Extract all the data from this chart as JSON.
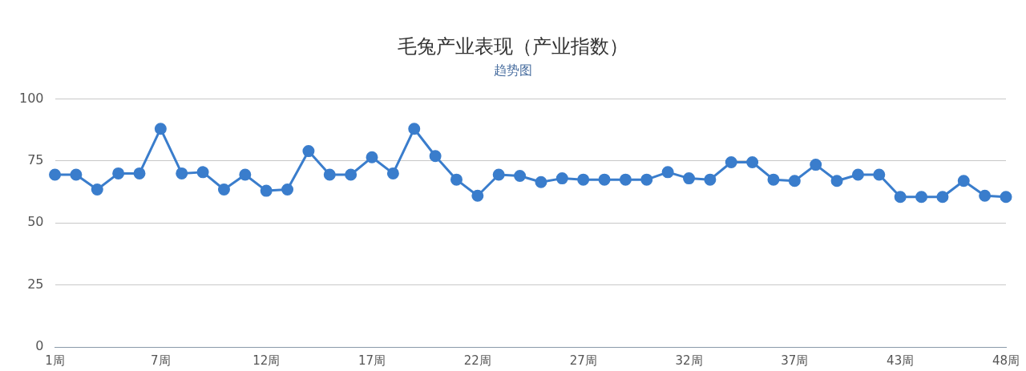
{
  "chart_data": {
    "type": "line",
    "title": "毛兔产业表现（产业指数）",
    "subtitle": "趋势图",
    "categories": [
      "1周",
      null,
      null,
      null,
      null,
      "7周",
      null,
      null,
      null,
      null,
      "12周",
      null,
      null,
      null,
      null,
      "17周",
      null,
      null,
      null,
      null,
      "22周",
      null,
      null,
      null,
      null,
      "27周",
      null,
      null,
      null,
      null,
      "32周",
      null,
      null,
      null,
      null,
      "37周",
      null,
      null,
      null,
      null,
      "43周",
      null,
      null,
      null,
      null,
      "48周"
    ],
    "series": [
      {
        "color": "#3a7dcc",
        "values": [
          69.5,
          69.5,
          63.5,
          70,
          70,
          88,
          70,
          70.5,
          63.5,
          69.5,
          63,
          63.5,
          79,
          69.5,
          69.5,
          76.5,
          70,
          88,
          77,
          67.5,
          61,
          69.5,
          69,
          66.5,
          68,
          67.5,
          67.5,
          67.5,
          67.5,
          70.5,
          68,
          67.5,
          74.5,
          74.5,
          67.5,
          67,
          73.5,
          67,
          69.5,
          69.5,
          60.5,
          60.5,
          60.5,
          67,
          61,
          60.5
        ]
      }
    ],
    "ylim": [
      0,
      100
    ],
    "yticks": [
      0,
      25,
      50,
      75,
      100
    ],
    "grid": "y",
    "legend": false,
    "marker": "circle",
    "line_style": "solid"
  }
}
